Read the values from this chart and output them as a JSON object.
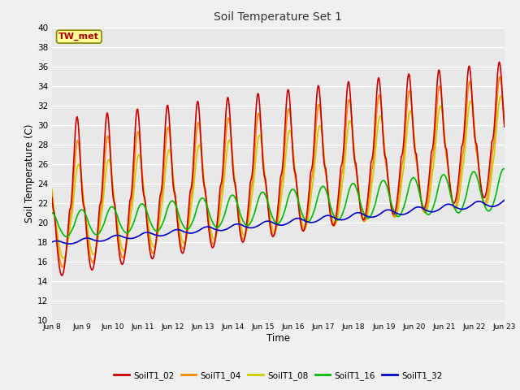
{
  "title": "Soil Temperature Set 1",
  "xlabel": "Time",
  "ylabel": "Soil Temperature (C)",
  "ylim": [
    10,
    40
  ],
  "fig_facecolor": "#f0f0f0",
  "ax_facecolor": "#e8e8e8",
  "annotation_text": "TW_met",
  "annotation_color": "#aa0000",
  "annotation_bg": "#ffff99",
  "annotation_border": "#888800",
  "xtick_labels": [
    "Jun 8",
    "Jun 9",
    "Jun 10",
    "Jun 11",
    "Jun 12",
    "Jun 13",
    "Jun 14",
    "Jun 15",
    "Jun 16",
    "Jun 17",
    "Jun 18",
    "Jun 19",
    "Jun 20",
    "Jun 21",
    "Jun 22",
    "Jun 23"
  ],
  "legend_colors": [
    "#cc0000",
    "#ff8800",
    "#cccc00",
    "#00bb00",
    "#0000cc"
  ],
  "legend_labels": [
    "SoilT1_02",
    "SoilT1_04",
    "SoilT1_08",
    "SoilT1_16",
    "SoilT1_32"
  ],
  "series_colors": [
    "#cc0000",
    "#ff8800",
    "#cccc00",
    "#00bb00",
    "#0000cc"
  ],
  "grid_color": "#ffffff",
  "linewidth": 1.2
}
